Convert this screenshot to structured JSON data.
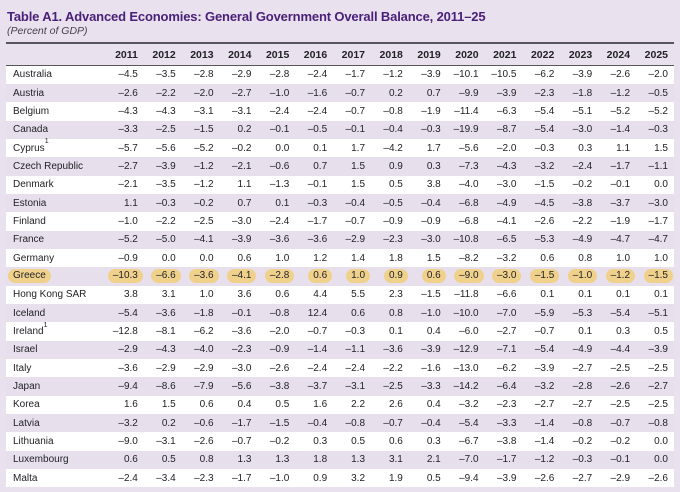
{
  "title": "Table A1. Advanced Economies: General Government Overall Balance, 2011–25",
  "subtitle": "(Percent of GDP)",
  "colors": {
    "title_purple": "#4A2078",
    "page_background": "#E9E2EE",
    "row_stripe": "#E7E0EC",
    "row_plain": "#FFFFFF",
    "rule": "#57565C",
    "text": "#232227",
    "greece_highlight": "#EFD18C"
  },
  "table": {
    "years": [
      "2011",
      "2012",
      "2013",
      "2014",
      "2015",
      "2016",
      "2017",
      "2018",
      "2019",
      "2020",
      "2021",
      "2022",
      "2023",
      "2024",
      "2025"
    ],
    "rows": [
      {
        "country": "Australia",
        "footnote": "",
        "highlight": false,
        "values": [
          "–4.5",
          "–3.5",
          "–2.8",
          "–2.9",
          "–2.8",
          "–2.4",
          "–1.7",
          "–1.2",
          "–3.9",
          "–10.1",
          "–10.5",
          "–6.2",
          "–3.9",
          "–2.6",
          "–2.0"
        ]
      },
      {
        "country": "Austria",
        "footnote": "",
        "highlight": false,
        "values": [
          "–2.6",
          "–2.2",
          "–2.0",
          "–2.7",
          "–1.0",
          "–1.6",
          "–0.7",
          "0.2",
          "0.7",
          "–9.9",
          "–3.9",
          "–2.3",
          "–1.8",
          "–1.2",
          "–0.5"
        ]
      },
      {
        "country": "Belgium",
        "footnote": "",
        "highlight": false,
        "values": [
          "–4.3",
          "–4.3",
          "–3.1",
          "–3.1",
          "–2.4",
          "–2.4",
          "–0.7",
          "–0.8",
          "–1.9",
          "–11.4",
          "–6.3",
          "–5.4",
          "–5.1",
          "–5.2",
          "–5.2"
        ]
      },
      {
        "country": "Canada",
        "footnote": "",
        "highlight": false,
        "values": [
          "–3.3",
          "–2.5",
          "–1.5",
          "0.2",
          "–0.1",
          "–0.5",
          "–0.1",
          "–0.4",
          "–0.3",
          "–19.9",
          "–8.7",
          "–5.4",
          "–3.0",
          "–1.4",
          "–0.3"
        ]
      },
      {
        "country": "Cyprus",
        "footnote": "1",
        "highlight": false,
        "values": [
          "–5.7",
          "–5.6",
          "–5.2",
          "–0.2",
          "0.0",
          "0.1",
          "1.7",
          "–4.2",
          "1.7",
          "–5.6",
          "–2.0",
          "–0.3",
          "0.3",
          "1.1",
          "1.5"
        ]
      },
      {
        "country": "Czech Republic",
        "footnote": "",
        "highlight": false,
        "values": [
          "–2.7",
          "–3.9",
          "–1.2",
          "–2.1",
          "–0.6",
          "0.7",
          "1.5",
          "0.9",
          "0.3",
          "–7.3",
          "–4.3",
          "–3.2",
          "–2.4",
          "–1.7",
          "–1.1"
        ]
      },
      {
        "country": "Denmark",
        "footnote": "",
        "highlight": false,
        "values": [
          "–2.1",
          "–3.5",
          "–1.2",
          "1.1",
          "–1.3",
          "–0.1",
          "1.5",
          "0.5",
          "3.8",
          "–4.0",
          "–3.0",
          "–1.5",
          "–0.2",
          "–0.1",
          "0.0"
        ]
      },
      {
        "country": "Estonia",
        "footnote": "",
        "highlight": false,
        "values": [
          "1.1",
          "–0.3",
          "–0.2",
          "0.7",
          "0.1",
          "–0.3",
          "–0.4",
          "–0.5",
          "–0.4",
          "–6.8",
          "–4.9",
          "–4.5",
          "–3.8",
          "–3.7",
          "–3.0"
        ]
      },
      {
        "country": "Finland",
        "footnote": "",
        "highlight": false,
        "values": [
          "–1.0",
          "–2.2",
          "–2.5",
          "–3.0",
          "–2.4",
          "–1.7",
          "–0.7",
          "–0.9",
          "–0.9",
          "–6.8",
          "–4.1",
          "–2.6",
          "–2.2",
          "–1.9",
          "–1.7"
        ]
      },
      {
        "country": "France",
        "footnote": "",
        "highlight": false,
        "values": [
          "–5.2",
          "–5.0",
          "–4.1",
          "–3.9",
          "–3.6",
          "–3.6",
          "–2.9",
          "–2.3",
          "–3.0",
          "–10.8",
          "–6.5",
          "–5.3",
          "–4.9",
          "–4.7",
          "–4.7"
        ]
      },
      {
        "country": "Germany",
        "footnote": "",
        "highlight": false,
        "values": [
          "–0.9",
          "0.0",
          "0.0",
          "0.6",
          "1.0",
          "1.2",
          "1.4",
          "1.8",
          "1.5",
          "–8.2",
          "–3.2",
          "0.6",
          "0.8",
          "1.0",
          "1.0"
        ]
      },
      {
        "country": "Greece",
        "footnote": "",
        "highlight": true,
        "values": [
          "–10.3",
          "–6.6",
          "–3.6",
          "–4.1",
          "–2.8",
          "0.6",
          "1.0",
          "0.9",
          "0.6",
          "–9.0",
          "–3.0",
          "–1.5",
          "–1.0",
          "–1.2",
          "–1.5"
        ]
      },
      {
        "country": "Hong Kong SAR",
        "footnote": "",
        "highlight": false,
        "values": [
          "3.8",
          "3.1",
          "1.0",
          "3.6",
          "0.6",
          "4.4",
          "5.5",
          "2.3",
          "–1.5",
          "–11.8",
          "–6.6",
          "0.1",
          "0.1",
          "0.1",
          "0.1"
        ]
      },
      {
        "country": "Iceland",
        "footnote": "",
        "highlight": false,
        "values": [
          "–5.4",
          "–3.6",
          "–1.8",
          "–0.1",
          "–0.8",
          "12.4",
          "0.6",
          "0.8",
          "–1.0",
          "–10.0",
          "–7.0",
          "–5.9",
          "–5.3",
          "–5.4",
          "–5.1"
        ]
      },
      {
        "country": "Ireland",
        "footnote": "1",
        "highlight": false,
        "values": [
          "–12.8",
          "–8.1",
          "–6.2",
          "–3.6",
          "–2.0",
          "–0.7",
          "–0.3",
          "0.1",
          "0.4",
          "–6.0",
          "–2.7",
          "–0.7",
          "0.1",
          "0.3",
          "0.5"
        ]
      },
      {
        "country": "Israel",
        "footnote": "",
        "highlight": false,
        "values": [
          "–2.9",
          "–4.3",
          "–4.0",
          "–2.3",
          "–0.9",
          "–1.4",
          "–1.1",
          "–3.6",
          "–3.9",
          "–12.9",
          "–7.1",
          "–5.4",
          "–4.9",
          "–4.4",
          "–3.9"
        ]
      },
      {
        "country": "Italy",
        "footnote": "",
        "highlight": false,
        "values": [
          "–3.6",
          "–2.9",
          "–2.9",
          "–3.0",
          "–2.6",
          "–2.4",
          "–2.4",
          "–2.2",
          "–1.6",
          "–13.0",
          "–6.2",
          "–3.9",
          "–2.7",
          "–2.5",
          "–2.5"
        ]
      },
      {
        "country": "Japan",
        "footnote": "",
        "highlight": false,
        "values": [
          "–9.4",
          "–8.6",
          "–7.9",
          "–5.6",
          "–3.8",
          "–3.7",
          "–3.1",
          "–2.5",
          "–3.3",
          "–14.2",
          "–6.4",
          "–3.2",
          "–2.8",
          "–2.6",
          "–2.7"
        ]
      },
      {
        "country": "Korea",
        "footnote": "",
        "highlight": false,
        "values": [
          "1.6",
          "1.5",
          "0.6",
          "0.4",
          "0.5",
          "1.6",
          "2.2",
          "2.6",
          "0.4",
          "–3.2",
          "–2.3",
          "–2.7",
          "–2.7",
          "–2.5",
          "–2.5"
        ]
      },
      {
        "country": "Latvia",
        "footnote": "",
        "highlight": false,
        "values": [
          "–3.2",
          "0.2",
          "–0.6",
          "–1.7",
          "–1.5",
          "–0.4",
          "–0.8",
          "–0.7",
          "–0.4",
          "–5.4",
          "–3.3",
          "–1.4",
          "–0.8",
          "–0.7",
          "–0.8"
        ]
      },
      {
        "country": "Lithuania",
        "footnote": "",
        "highlight": false,
        "values": [
          "–9.0",
          "–3.1",
          "–2.6",
          "–0.7",
          "–0.2",
          "0.3",
          "0.5",
          "0.6",
          "0.3",
          "–6.7",
          "–3.8",
          "–1.4",
          "–0.2",
          "–0.2",
          "0.0"
        ]
      },
      {
        "country": "Luxembourg",
        "footnote": "",
        "highlight": false,
        "values": [
          "0.6",
          "0.5",
          "0.8",
          "1.3",
          "1.3",
          "1.8",
          "1.3",
          "3.1",
          "2.1",
          "–7.0",
          "–1.7",
          "–1.2",
          "–0.3",
          "–0.1",
          "0.0"
        ]
      },
      {
        "country": "Malta",
        "footnote": "",
        "highlight": false,
        "values": [
          "–2.4",
          "–3.4",
          "–2.3",
          "–1.7",
          "–1.0",
          "0.9",
          "3.2",
          "1.9",
          "0.5",
          "–9.4",
          "–3.9",
          "–2.6",
          "–2.7",
          "–2.9",
          "–2.6"
        ]
      }
    ]
  }
}
